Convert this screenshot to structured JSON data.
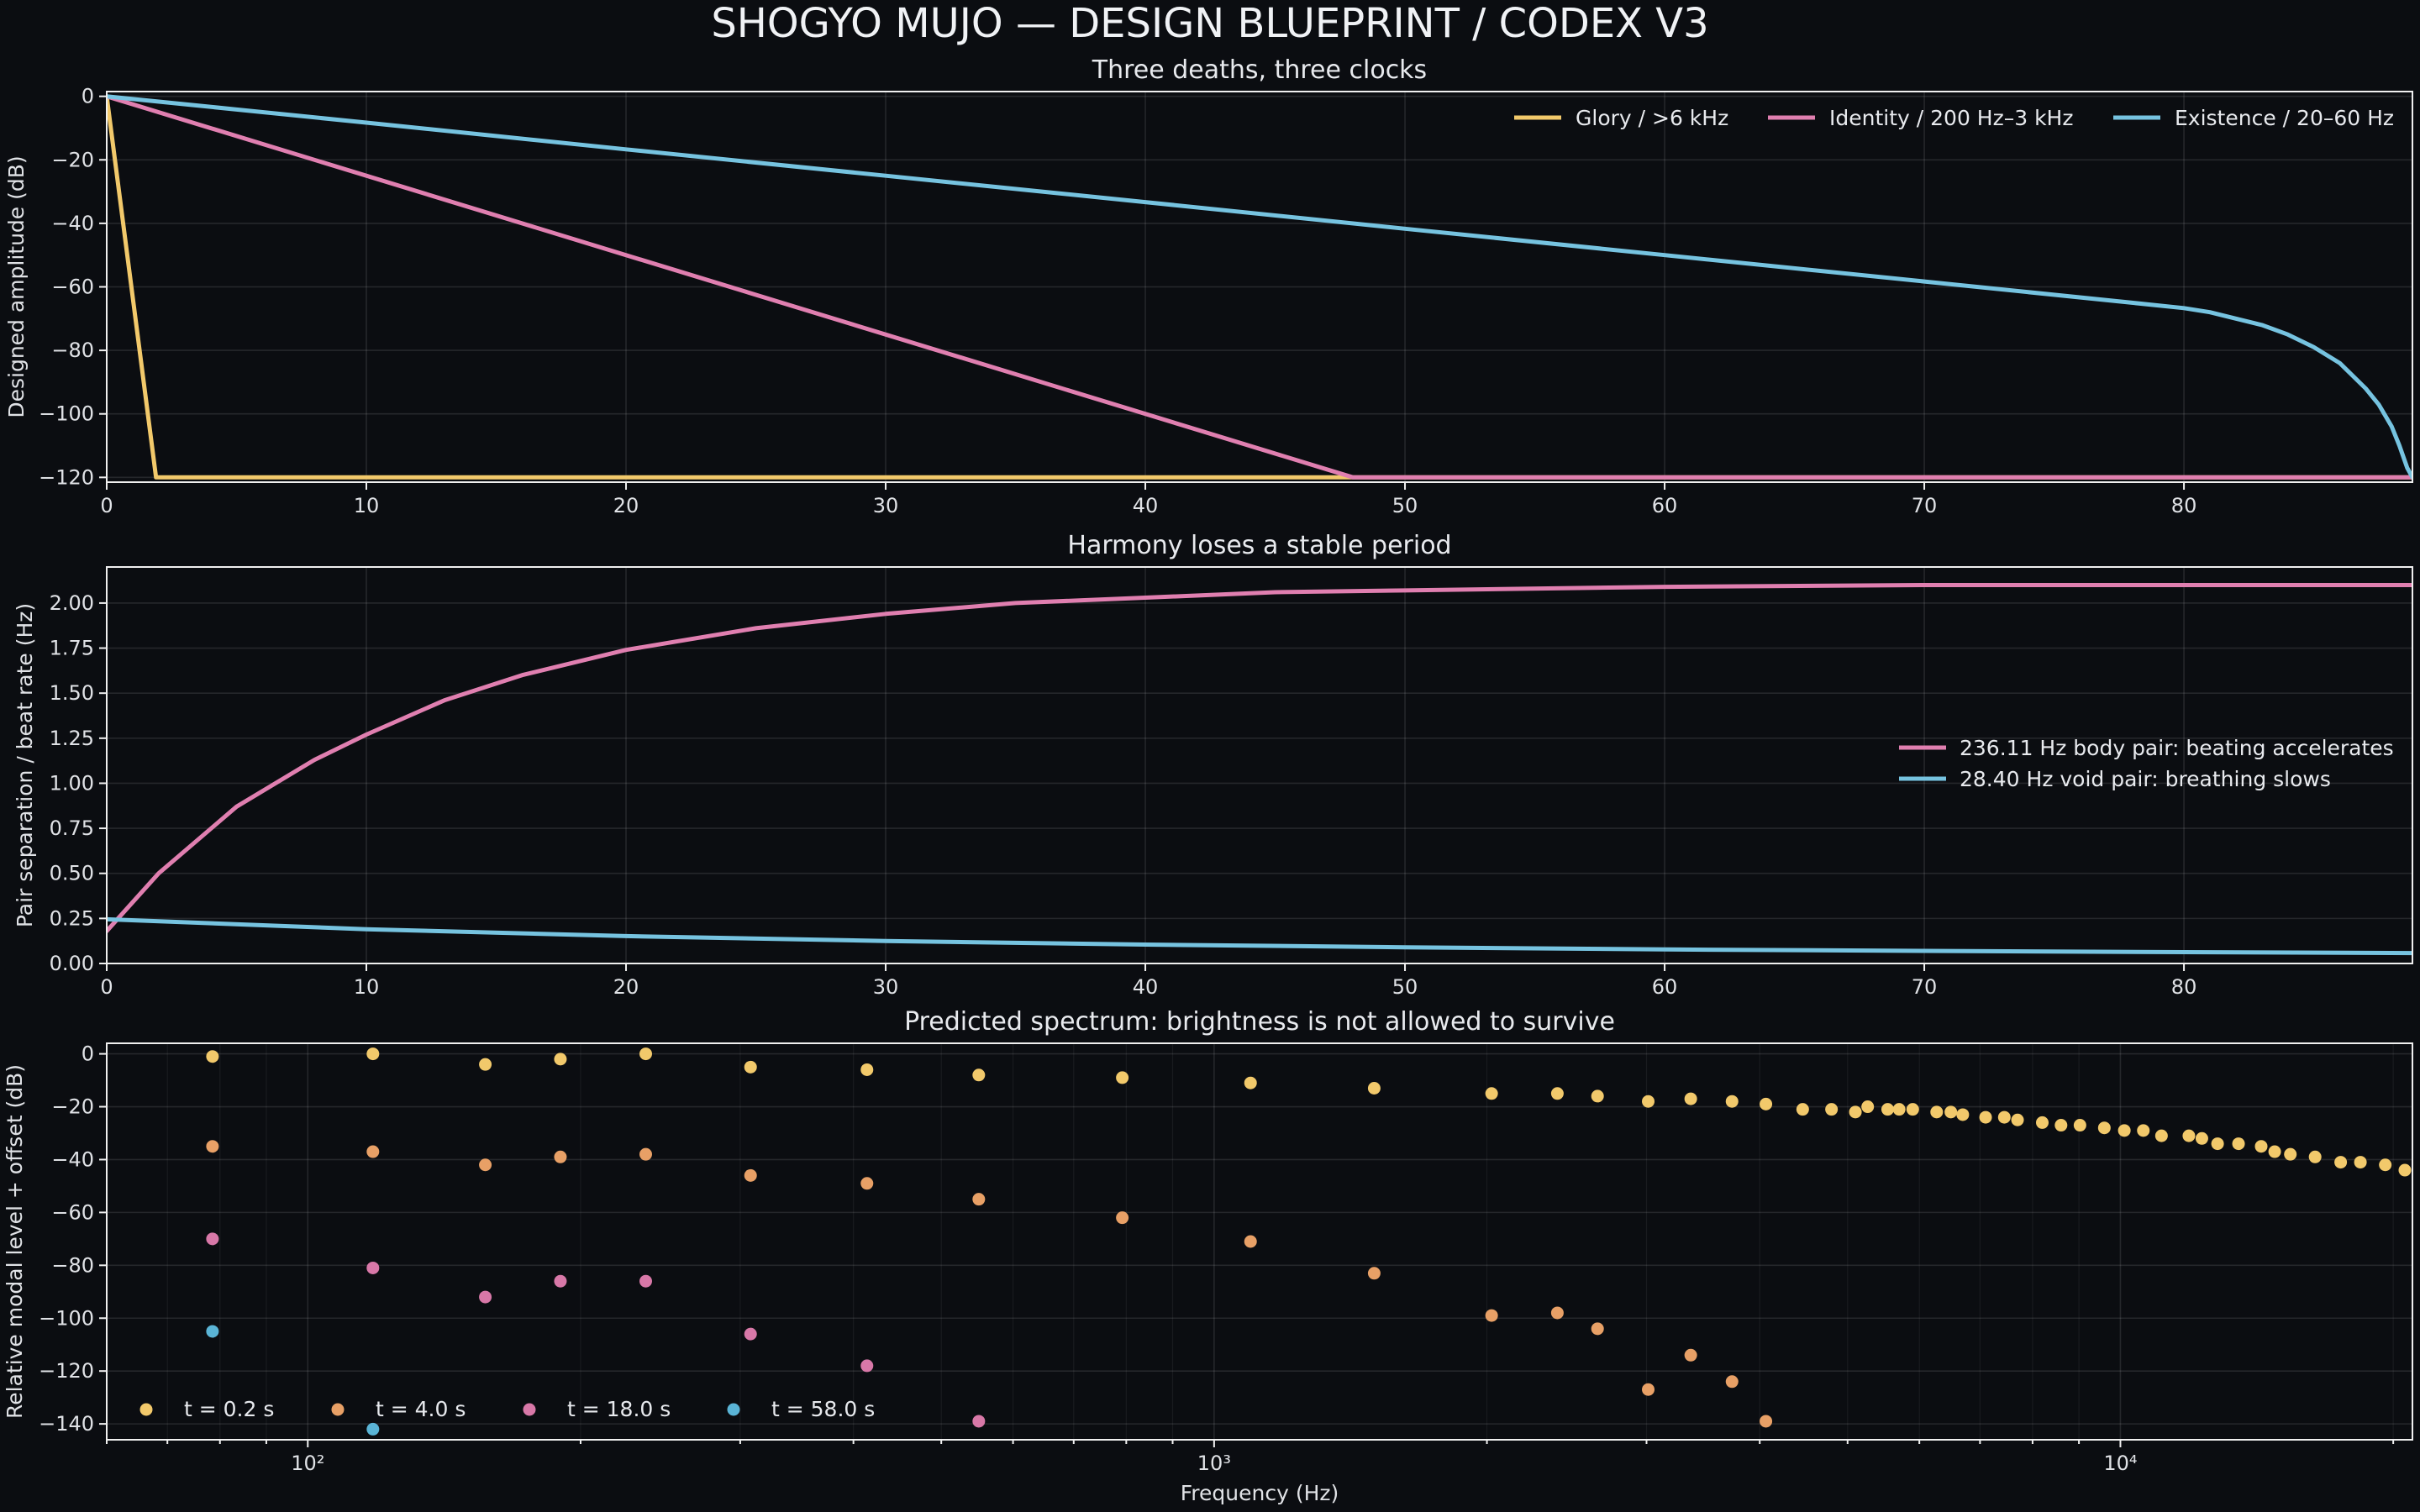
{
  "suptitle": "SHOGYO MUJO — DESIGN BLUEPRINT / CODEX V3",
  "colors": {
    "background": "#0b0d11",
    "glory": "#f2c96b",
    "identity": "#e07fb0",
    "existence": "#76c3e0",
    "t4": "#e8a066",
    "t18": "#d878a8",
    "t58": "#5ab4d6"
  },
  "chart_data": [
    {
      "type": "line",
      "title": "Three deaths, three clocks",
      "xlabel": "",
      "ylabel": "Designed amplitude (dB)",
      "xlim": [
        0,
        88.8
      ],
      "ylim": [
        -121.5,
        1.5
      ],
      "xticks": [
        0,
        10,
        20,
        30,
        40,
        50,
        60,
        70,
        80
      ],
      "yticks": [
        0,
        -20,
        -40,
        -60,
        -80,
        -100,
        -120
      ],
      "grid": true,
      "legend": "top-right",
      "series": [
        {
          "name": "Glory / >6 kHz",
          "color": "#f2c96b",
          "x": [
            0,
            1.9,
            88.8
          ],
          "y": [
            0,
            -120,
            -120
          ]
        },
        {
          "name": "Identity / 200 Hz–3 kHz",
          "color": "#e07fb0",
          "x": [
            0,
            48,
            88.8
          ],
          "y": [
            0,
            -120,
            -120
          ]
        },
        {
          "name": "Existence / 20–60 Hz",
          "color": "#76c3e0",
          "x": [
            0,
            10,
            20,
            30,
            40,
            50,
            60,
            70,
            78,
            80,
            81,
            82,
            83,
            84,
            85,
            86,
            87,
            87.5,
            88,
            88.3,
            88.6,
            88.8
          ],
          "y": [
            0,
            -8.3,
            -16.7,
            -25,
            -33.3,
            -41.7,
            -50,
            -58.3,
            -65,
            -66.7,
            -68,
            -70,
            -72,
            -75,
            -79,
            -84,
            -92,
            -97,
            -104,
            -110,
            -117,
            -120
          ]
        }
      ]
    },
    {
      "type": "line",
      "title": "Harmony loses a stable period",
      "xlabel": "",
      "ylabel": "Pair separation / beat rate (Hz)",
      "xlim": [
        0,
        88.8
      ],
      "ylim": [
        0,
        2.2
      ],
      "xticks": [
        0,
        10,
        20,
        30,
        40,
        50,
        60,
        70,
        80
      ],
      "yticks": [
        0,
        0.25,
        0.5,
        0.75,
        1.0,
        1.25,
        1.5,
        1.75,
        2.0
      ],
      "ytick_labels": [
        "0.00",
        "0.25",
        "0.50",
        "0.75",
        "1.00",
        "1.25",
        "1.50",
        "1.75",
        "2.00"
      ],
      "grid": true,
      "legend": "center-right",
      "series": [
        {
          "name": "236.11 Hz body pair: beating accelerates",
          "color": "#e07fb0",
          "x": [
            0,
            2,
            5,
            8,
            10,
            13,
            16,
            20,
            25,
            30,
            35,
            40,
            45,
            50,
            60,
            70,
            80,
            88.8
          ],
          "y": [
            0.18,
            0.5,
            0.87,
            1.13,
            1.27,
            1.46,
            1.6,
            1.74,
            1.86,
            1.94,
            2.0,
            2.03,
            2.06,
            2.07,
            2.09,
            2.1,
            2.1,
            2.1
          ]
        },
        {
          "name": "28.40 Hz void pair: breathing slows",
          "color": "#76c3e0",
          "x": [
            0,
            10,
            20,
            30,
            40,
            50,
            60,
            70,
            80,
            88.8
          ],
          "y": [
            0.245,
            0.19,
            0.152,
            0.125,
            0.105,
            0.09,
            0.078,
            0.07,
            0.063,
            0.058
          ]
        }
      ]
    },
    {
      "type": "scatter",
      "title": "Predicted spectrum: brightness is not allowed to survive",
      "xlabel": "Frequency (Hz)",
      "ylabel": "Relative modal level + offset (dB)",
      "xscale": "log",
      "xlim": [
        60,
        21000
      ],
      "ylim": [
        -146,
        4
      ],
      "xticks": [
        100,
        1000,
        10000
      ],
      "xtick_labels": [
        "10²",
        "10³",
        "10⁴"
      ],
      "yticks": [
        0,
        -20,
        -40,
        -60,
        -80,
        -100,
        -120,
        -140
      ],
      "grid": true,
      "legend": "lower-left",
      "series": [
        {
          "name": "t = 0.2 s",
          "color": "#f2c96b",
          "x": [
            78.5,
            118,
            157,
            190,
            236,
            308,
            414,
            550,
            792,
            1097,
            1502,
            2024,
            2392,
            2649,
            3013,
            3357,
            3728,
            4063,
            4461,
            4800,
            5100,
            5262,
            5536,
            5700,
            5900,
            6270,
            6500,
            6700,
            7100,
            7446,
            7700,
            8200,
            8600,
            9024,
            9600,
            10100,
            10600,
            11100,
            11900,
            12300,
            12800,
            13500,
            14300,
            14800,
            15400,
            16400,
            17500,
            18400,
            19600,
            20600
          ],
          "y": [
            -1,
            0,
            -4,
            -2,
            0,
            -5,
            -6,
            -8,
            -9,
            -11,
            -13,
            -15,
            -15,
            -16,
            -18,
            -17,
            -18,
            -19,
            -21,
            -21,
            -22,
            -20,
            -21,
            -21,
            -21,
            -22,
            -22,
            -23,
            -24,
            -24,
            -25,
            -26,
            -27,
            -27,
            -28,
            -29,
            -29,
            -31,
            -31,
            -32,
            -34,
            -34,
            -35,
            -37,
            -38,
            -39,
            -41,
            -41,
            -42,
            -44
          ]
        },
        {
          "name": "t = 4.0 s",
          "color": "#e8a066",
          "x": [
            78.5,
            118,
            157,
            190,
            236,
            308,
            414,
            550,
            792,
            1097,
            1502,
            2024,
            2392,
            2649,
            3013,
            3357,
            3728,
            4063
          ],
          "y": [
            -35,
            -37,
            -42,
            -39,
            -38,
            -46,
            -49,
            -55,
            -62,
            -71,
            -83,
            -99,
            -98,
            -104,
            -127,
            -114,
            -124,
            -139
          ]
        },
        {
          "name": "t = 18.0 s",
          "color": "#d878a8",
          "x": [
            78.5,
            118,
            157,
            190,
            236,
            308,
            414,
            550
          ],
          "y": [
            -70,
            -81,
            -92,
            -86,
            -86,
            -106,
            -118,
            -139
          ]
        },
        {
          "name": "t = 58.0 s",
          "color": "#5ab4d6",
          "x": [
            78.5,
            118
          ],
          "y": [
            -105,
            -142
          ]
        }
      ]
    }
  ]
}
